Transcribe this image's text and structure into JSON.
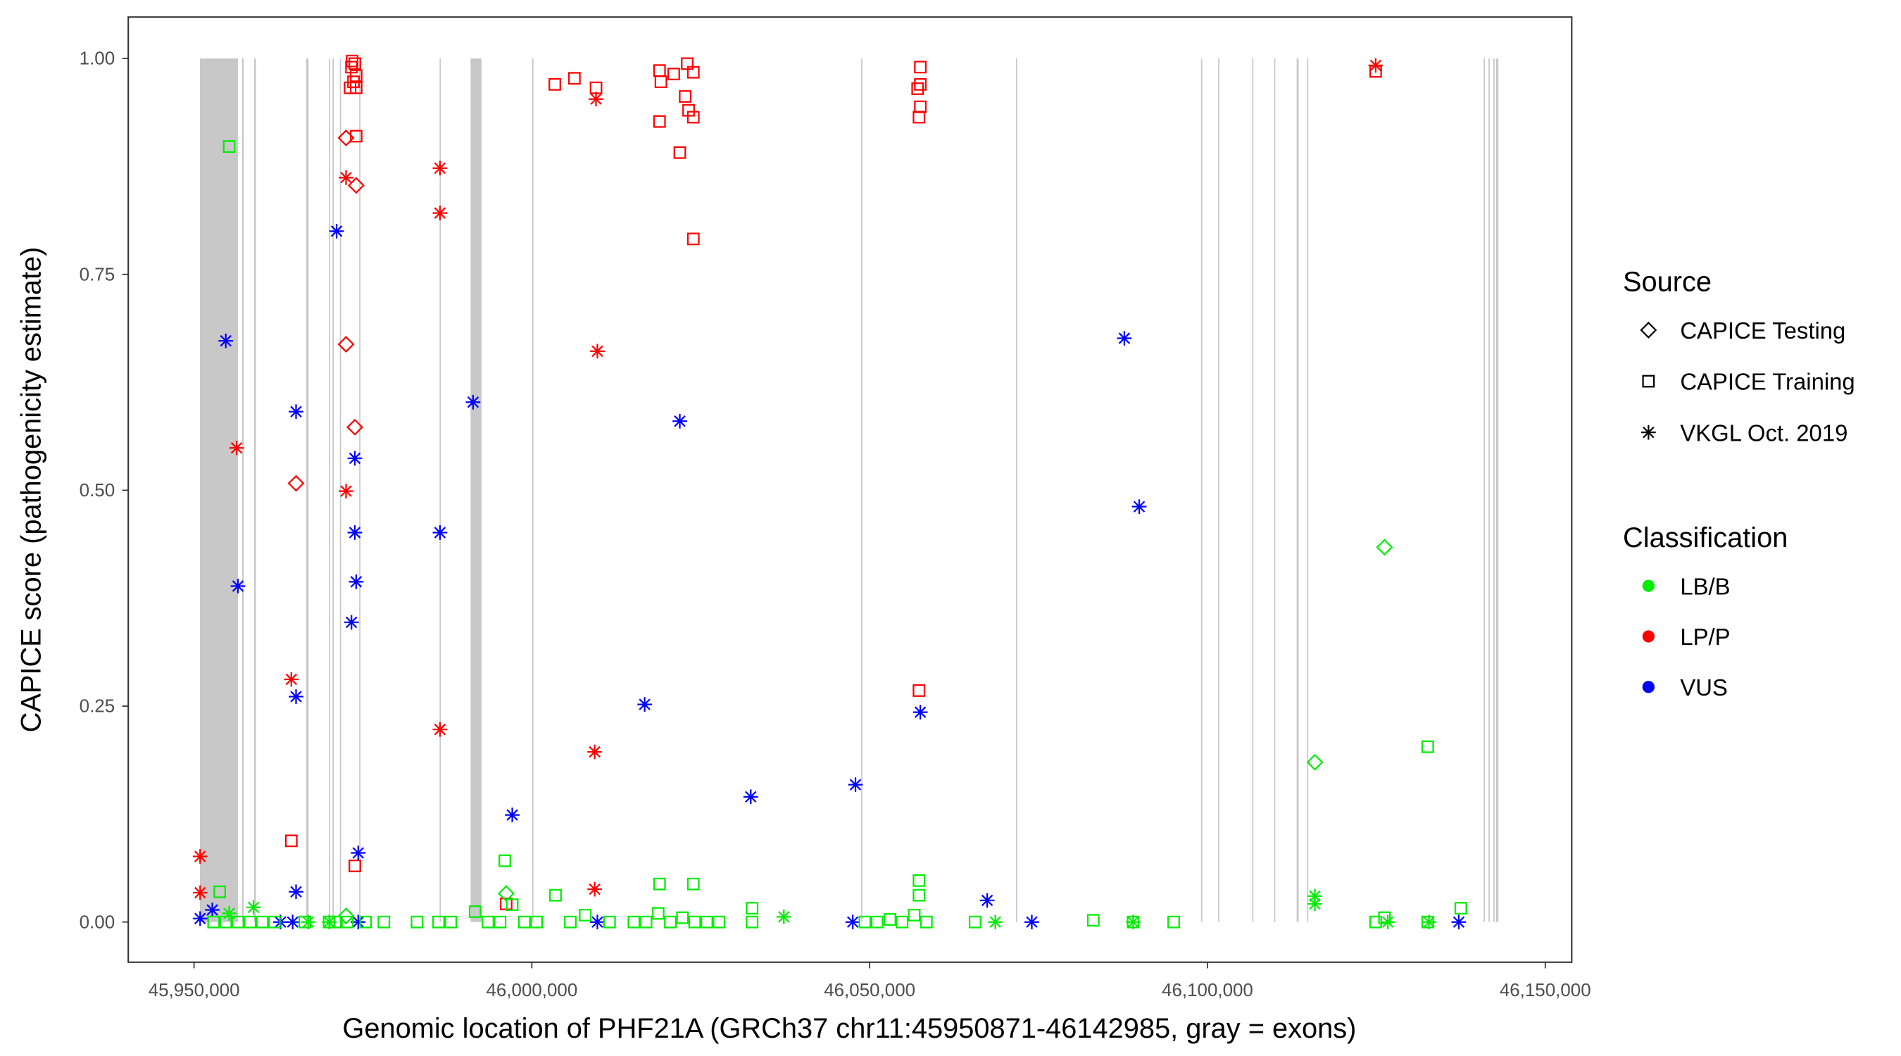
{
  "chart_data": {
    "type": "scatter",
    "xlabel": "Genomic location of PHF21A (GRCh37 chr11:45950871-46142985, gray = exons)",
    "ylabel": "CAPICE score (pathogenicity estimate)",
    "xlim": [
      45940000,
      46150000
    ],
    "ylim": [
      -0.045,
      1.05
    ],
    "x_ticks": [
      45950000,
      46000000,
      46050000,
      46100000,
      46150000
    ],
    "x_tick_labels": [
      "45,950,000",
      "46,000,000",
      "46,050,000",
      "46,100,000",
      "46,150,000"
    ],
    "y_ticks": [
      0,
      0.25,
      0.5,
      0.75,
      1.0
    ],
    "y_tick_labels": [
      "0.00",
      "0.25",
      "0.50",
      "0.75",
      "1.00"
    ],
    "grid": false,
    "legend_placement": "right",
    "legend": {
      "source_title": "Source",
      "sources": [
        {
          "key": "testing",
          "label": "CAPICE Testing",
          "shape": "diamond"
        },
        {
          "key": "training",
          "label": "CAPICE Training",
          "shape": "square"
        },
        {
          "key": "vkgl",
          "label": "VKGL Oct. 2019",
          "shape": "asterisk"
        }
      ],
      "class_title": "Classification",
      "classes": [
        {
          "key": "LB/B",
          "label": "LB/B",
          "color": "#00ee00"
        },
        {
          "key": "LP/P",
          "label": "LP/P",
          "color": "#ff0000"
        },
        {
          "key": "VUS",
          "label": "VUS",
          "color": "#0000ff"
        }
      ]
    },
    "exon_color": "#c8c8c8",
    "exons": [
      [
        45950871,
        45956500
      ],
      [
        45957100,
        45957350
      ],
      [
        45958900,
        45959150
      ],
      [
        45966600,
        45966950
      ],
      [
        45969950,
        45970080
      ],
      [
        45970500,
        45970620
      ],
      [
        45971580,
        45971700
      ],
      [
        45974450,
        45974600
      ],
      [
        45986350,
        45986500
      ],
      [
        45990928,
        45992550
      ],
      [
        46000060,
        46000180
      ],
      [
        46048750,
        46048870
      ],
      [
        46071650,
        46071760
      ],
      [
        46099050,
        46099160
      ],
      [
        46101580,
        46101690
      ],
      [
        46106620,
        46106740
      ],
      [
        46109870,
        46109990
      ],
      [
        46113200,
        46113500
      ],
      [
        46114740,
        46114850
      ],
      [
        46140880,
        46140990
      ],
      [
        46141600,
        46141720
      ],
      [
        46142320,
        46142440
      ],
      [
        46142700,
        46142800
      ],
      [
        46142880,
        46142985
      ]
    ],
    "points_fields": [
      "position",
      "score",
      "source",
      "classification"
    ],
    "points": [
      [
        45973400,
        0.997,
        "training",
        "LP/P"
      ],
      [
        45973800,
        0.994,
        "training",
        "LP/P"
      ],
      [
        45973300,
        0.99,
        "training",
        "LP/P"
      ],
      [
        45974000,
        0.98,
        "training",
        "LP/P"
      ],
      [
        45973600,
        0.973,
        "training",
        "LP/P"
      ],
      [
        45974000,
        0.966,
        "training",
        "LP/P"
      ],
      [
        45973100,
        0.966,
        "training",
        "LP/P"
      ],
      [
        45974000,
        0.91,
        "training",
        "LP/P"
      ],
      [
        46003400,
        0.97,
        "training",
        "LP/P"
      ],
      [
        46006300,
        0.977,
        "training",
        "LP/P"
      ],
      [
        46009500,
        0.966,
        "training",
        "LP/P"
      ],
      [
        46018900,
        0.986,
        "training",
        "LP/P"
      ],
      [
        46019100,
        0.973,
        "training",
        "LP/P"
      ],
      [
        46021000,
        0.982,
        "training",
        "LP/P"
      ],
      [
        46023000,
        0.994,
        "training",
        "LP/P"
      ],
      [
        46023900,
        0.984,
        "training",
        "LP/P"
      ],
      [
        46022700,
        0.956,
        "training",
        "LP/P"
      ],
      [
        46023200,
        0.94,
        "training",
        "LP/P"
      ],
      [
        46023900,
        0.932,
        "training",
        "LP/P"
      ],
      [
        46018900,
        0.927,
        "training",
        "LP/P"
      ],
      [
        46021900,
        0.891,
        "training",
        "LP/P"
      ],
      [
        46023900,
        0.791,
        "training",
        "LP/P"
      ],
      [
        46057500,
        0.99,
        "training",
        "LP/P"
      ],
      [
        46057500,
        0.97,
        "training",
        "LP/P"
      ],
      [
        46057100,
        0.965,
        "training",
        "LP/P"
      ],
      [
        46057500,
        0.944,
        "training",
        "LP/P"
      ],
      [
        46057300,
        0.932,
        "training",
        "LP/P"
      ],
      [
        46124900,
        0.985,
        "training",
        "LP/P"
      ],
      [
        46057300,
        0.268,
        "training",
        "LP/P"
      ],
      [
        45964400,
        0.094,
        "training",
        "LP/P"
      ],
      [
        45973800,
        0.065,
        "training",
        "LP/P"
      ],
      [
        45996200,
        0.021,
        "training",
        "LP/P"
      ],
      [
        45972500,
        0.908,
        "testing",
        "LP/P"
      ],
      [
        45974000,
        0.853,
        "testing",
        "LP/P"
      ],
      [
        45972500,
        0.669,
        "testing",
        "LP/P"
      ],
      [
        45973800,
        0.573,
        "testing",
        "LP/P"
      ],
      [
        45965100,
        0.508,
        "testing",
        "LP/P"
      ],
      [
        46124900,
        0.992,
        "vkgl",
        "LP/P"
      ],
      [
        46009500,
        0.953,
        "vkgl",
        "LP/P"
      ],
      [
        45972500,
        0.862,
        "vkgl",
        "LP/P"
      ],
      [
        45986400,
        0.873,
        "vkgl",
        "LP/P"
      ],
      [
        45986400,
        0.821,
        "vkgl",
        "LP/P"
      ],
      [
        46009700,
        0.661,
        "vkgl",
        "LP/P"
      ],
      [
        45956300,
        0.549,
        "vkgl",
        "LP/P"
      ],
      [
        45972500,
        0.499,
        "vkgl",
        "LP/P"
      ],
      [
        45964400,
        0.281,
        "vkgl",
        "LP/P"
      ],
      [
        45986400,
        0.223,
        "vkgl",
        "LP/P"
      ],
      [
        46009300,
        0.197,
        "vkgl",
        "LP/P"
      ],
      [
        45950900,
        0.076,
        "vkgl",
        "LP/P"
      ],
      [
        45950900,
        0.034,
        "vkgl",
        "LP/P"
      ],
      [
        46009300,
        0.038,
        "vkgl",
        "LP/P"
      ],
      [
        45971100,
        0.8,
        "vkgl",
        "VUS"
      ],
      [
        45954700,
        0.673,
        "vkgl",
        "VUS"
      ],
      [
        45991300,
        0.602,
        "vkgl",
        "VUS"
      ],
      [
        46021900,
        0.58,
        "vkgl",
        "VUS"
      ],
      [
        46087700,
        0.676,
        "vkgl",
        "VUS"
      ],
      [
        46089900,
        0.481,
        "vkgl",
        "VUS"
      ],
      [
        45965100,
        0.591,
        "vkgl",
        "VUS"
      ],
      [
        45973800,
        0.537,
        "vkgl",
        "VUS"
      ],
      [
        45973800,
        0.451,
        "vkgl",
        "VUS"
      ],
      [
        45986400,
        0.451,
        "vkgl",
        "VUS"
      ],
      [
        45974000,
        0.394,
        "vkgl",
        "VUS"
      ],
      [
        45973300,
        0.347,
        "vkgl",
        "VUS"
      ],
      [
        45956500,
        0.389,
        "vkgl",
        "VUS"
      ],
      [
        45965100,
        0.261,
        "vkgl",
        "VUS"
      ],
      [
        46016700,
        0.252,
        "vkgl",
        "VUS"
      ],
      [
        46057500,
        0.243,
        "vkgl",
        "VUS"
      ],
      [
        45997100,
        0.124,
        "vkgl",
        "VUS"
      ],
      [
        46032400,
        0.145,
        "vkgl",
        "VUS"
      ],
      [
        46047900,
        0.159,
        "vkgl",
        "VUS"
      ],
      [
        45974300,
        0.08,
        "vkgl",
        "VUS"
      ],
      [
        45965100,
        0.035,
        "vkgl",
        "VUS"
      ],
      [
        46067400,
        0.025,
        "vkgl",
        "VUS"
      ],
      [
        45950900,
        0.004,
        "vkgl",
        "VUS"
      ],
      [
        45952700,
        0.014,
        "vkgl",
        "VUS"
      ],
      [
        45962800,
        0.0,
        "vkgl",
        "VUS"
      ],
      [
        45964600,
        0.0,
        "vkgl",
        "VUS"
      ],
      [
        45974300,
        0.0,
        "vkgl",
        "VUS"
      ],
      [
        46009700,
        0.0,
        "vkgl",
        "VUS"
      ],
      [
        46047500,
        0.0,
        "vkgl",
        "VUS"
      ],
      [
        46074000,
        0.0,
        "vkgl",
        "VUS"
      ],
      [
        46137200,
        0.0,
        "vkgl",
        "VUS"
      ],
      [
        45955200,
        0.898,
        "training",
        "LB/B"
      ],
      [
        46126200,
        0.434,
        "testing",
        "LB/B"
      ],
      [
        46115900,
        0.185,
        "testing",
        "LB/B"
      ],
      [
        46132600,
        0.203,
        "training",
        "LB/B"
      ],
      [
        46115900,
        0.03,
        "vkgl",
        "LB/B"
      ],
      [
        46115900,
        0.021,
        "vkgl",
        "LB/B"
      ],
      [
        45996000,
        0.071,
        "training",
        "LB/B"
      ],
      [
        45953800,
        0.035,
        "training",
        "LB/B"
      ],
      [
        46003500,
        0.031,
        "training",
        "LB/B"
      ],
      [
        46018900,
        0.044,
        "training",
        "LB/B"
      ],
      [
        46023900,
        0.044,
        "training",
        "LB/B"
      ],
      [
        46057300,
        0.048,
        "training",
        "LB/B"
      ],
      [
        46057300,
        0.031,
        "training",
        "LB/B"
      ],
      [
        46032600,
        0.016,
        "training",
        "LB/B"
      ],
      [
        46137500,
        0.016,
        "training",
        "LB/B"
      ],
      [
        45996200,
        0.033,
        "testing",
        "LB/B"
      ],
      [
        45972500,
        0.007,
        "testing",
        "LB/B"
      ],
      [
        45952900,
        0,
        "training",
        "LB/B"
      ],
      [
        45954700,
        0,
        "training",
        "LB/B"
      ],
      [
        45956500,
        0,
        "training",
        "LB/B"
      ],
      [
        45958300,
        0,
        "training",
        "LB/B"
      ],
      [
        45960100,
        0,
        "training",
        "LB/B"
      ],
      [
        45961900,
        0,
        "training",
        "LB/B"
      ],
      [
        45966400,
        0,
        "training",
        "LB/B"
      ],
      [
        45970000,
        0,
        "training",
        "LB/B"
      ],
      [
        45970900,
        0,
        "training",
        "LB/B"
      ],
      [
        45972700,
        0,
        "training",
        "LB/B"
      ],
      [
        45975400,
        0,
        "training",
        "LB/B"
      ],
      [
        45978100,
        0,
        "training",
        "LB/B"
      ],
      [
        45983000,
        0,
        "training",
        "LB/B"
      ],
      [
        45986200,
        0,
        "training",
        "LB/B"
      ],
      [
        45988000,
        0,
        "training",
        "LB/B"
      ],
      [
        45991600,
        0.012,
        "training",
        "LB/B"
      ],
      [
        45993500,
        0,
        "training",
        "LB/B"
      ],
      [
        45995300,
        0,
        "training",
        "LB/B"
      ],
      [
        45997100,
        0.02,
        "training",
        "LB/B"
      ],
      [
        45998900,
        0,
        "training",
        "LB/B"
      ],
      [
        46000700,
        0,
        "training",
        "LB/B"
      ],
      [
        46005700,
        0,
        "training",
        "LB/B"
      ],
      [
        46007900,
        0.008,
        "training",
        "LB/B"
      ],
      [
        46011500,
        0,
        "training",
        "LB/B"
      ],
      [
        46015100,
        0,
        "training",
        "LB/B"
      ],
      [
        46016900,
        0,
        "training",
        "LB/B"
      ],
      [
        46018700,
        0.01,
        "training",
        "LB/B"
      ],
      [
        46020500,
        0,
        "training",
        "LB/B"
      ],
      [
        46022300,
        0.005,
        "training",
        "LB/B"
      ],
      [
        46024100,
        0,
        "training",
        "LB/B"
      ],
      [
        46025900,
        0,
        "training",
        "LB/B"
      ],
      [
        46027700,
        0,
        "training",
        "LB/B"
      ],
      [
        46032600,
        0,
        "training",
        "LB/B"
      ],
      [
        46049300,
        0,
        "training",
        "LB/B"
      ],
      [
        46051100,
        0,
        "training",
        "LB/B"
      ],
      [
        46053000,
        0.003,
        "training",
        "LB/B"
      ],
      [
        46054800,
        0,
        "training",
        "LB/B"
      ],
      [
        46056600,
        0.008,
        "training",
        "LB/B"
      ],
      [
        46058400,
        0,
        "training",
        "LB/B"
      ],
      [
        46065600,
        0,
        "training",
        "LB/B"
      ],
      [
        46083100,
        0.002,
        "training",
        "LB/B"
      ],
      [
        46089000,
        0,
        "training",
        "LB/B"
      ],
      [
        46095000,
        0,
        "training",
        "LB/B"
      ],
      [
        46124900,
        0,
        "training",
        "LB/B"
      ],
      [
        46126200,
        0.005,
        "training",
        "LB/B"
      ],
      [
        46132600,
        0,
        "training",
        "LB/B"
      ],
      [
        45955200,
        0.01,
        "vkgl",
        "LB/B"
      ],
      [
        45958800,
        0.017,
        "vkgl",
        "LB/B"
      ],
      [
        45966900,
        0,
        "vkgl",
        "LB/B"
      ],
      [
        45970000,
        0,
        "vkgl",
        "LB/B"
      ],
      [
        46037300,
        0.006,
        "vkgl",
        "LB/B"
      ],
      [
        46068600,
        0,
        "vkgl",
        "LB/B"
      ],
      [
        46126700,
        0,
        "vkgl",
        "LB/B"
      ],
      [
        46132800,
        0,
        "vkgl",
        "LB/B"
      ],
      [
        46089000,
        0,
        "vkgl",
        "LB/B"
      ]
    ]
  }
}
